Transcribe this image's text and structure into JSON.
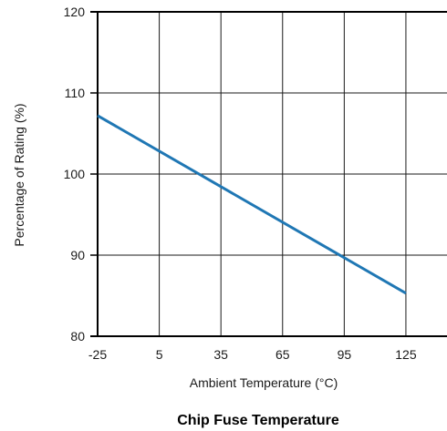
{
  "chart_data": {
    "type": "line",
    "title": "Chip Fuse Temperature",
    "xlabel": "Ambient Temperature (°C)",
    "ylabel": "Percentage of Rating (%)",
    "xlim": [
      -25,
      145
    ],
    "ylim": [
      80,
      120
    ],
    "xticks": [
      -25,
      5,
      35,
      65,
      95,
      125
    ],
    "xtick_labels": [
      "-25",
      "5",
      "35",
      "65",
      "95",
      "125"
    ],
    "yticks": [
      80,
      90,
      100,
      110,
      120
    ],
    "ytick_labels": [
      "80",
      "90",
      "100",
      "110",
      "120"
    ],
    "grid": true,
    "series": [
      {
        "color": "#1f77b4",
        "x": [
          -25,
          125
        ],
        "y": [
          107.2,
          85.3
        ]
      }
    ]
  }
}
